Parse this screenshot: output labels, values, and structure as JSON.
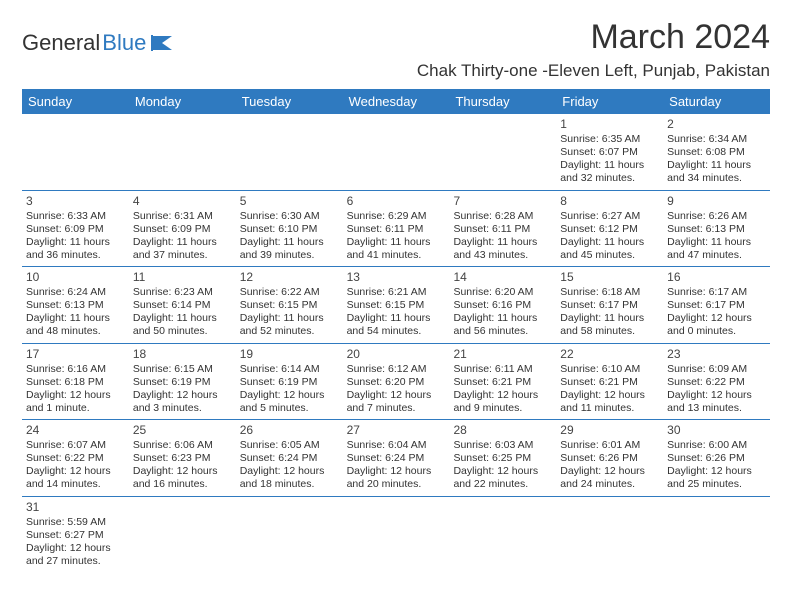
{
  "logo": {
    "text1": "General",
    "text2": "Blue"
  },
  "header": {
    "month_title": "March 2024",
    "location": "Chak Thirty-one -Eleven Left, Punjab, Pakistan"
  },
  "colors": {
    "accent": "#2f7ac0",
    "text": "#333333",
    "bg": "#ffffff"
  },
  "days_of_week": [
    "Sunday",
    "Monday",
    "Tuesday",
    "Wednesday",
    "Thursday",
    "Friday",
    "Saturday"
  ],
  "weeks": [
    [
      null,
      null,
      null,
      null,
      null,
      {
        "n": "1",
        "sr": "Sunrise: 6:35 AM",
        "ss": "Sunset: 6:07 PM",
        "dl": "Daylight: 11 hours and 32 minutes."
      },
      {
        "n": "2",
        "sr": "Sunrise: 6:34 AM",
        "ss": "Sunset: 6:08 PM",
        "dl": "Daylight: 11 hours and 34 minutes."
      }
    ],
    [
      {
        "n": "3",
        "sr": "Sunrise: 6:33 AM",
        "ss": "Sunset: 6:09 PM",
        "dl": "Daylight: 11 hours and 36 minutes."
      },
      {
        "n": "4",
        "sr": "Sunrise: 6:31 AM",
        "ss": "Sunset: 6:09 PM",
        "dl": "Daylight: 11 hours and 37 minutes."
      },
      {
        "n": "5",
        "sr": "Sunrise: 6:30 AM",
        "ss": "Sunset: 6:10 PM",
        "dl": "Daylight: 11 hours and 39 minutes."
      },
      {
        "n": "6",
        "sr": "Sunrise: 6:29 AM",
        "ss": "Sunset: 6:11 PM",
        "dl": "Daylight: 11 hours and 41 minutes."
      },
      {
        "n": "7",
        "sr": "Sunrise: 6:28 AM",
        "ss": "Sunset: 6:11 PM",
        "dl": "Daylight: 11 hours and 43 minutes."
      },
      {
        "n": "8",
        "sr": "Sunrise: 6:27 AM",
        "ss": "Sunset: 6:12 PM",
        "dl": "Daylight: 11 hours and 45 minutes."
      },
      {
        "n": "9",
        "sr": "Sunrise: 6:26 AM",
        "ss": "Sunset: 6:13 PM",
        "dl": "Daylight: 11 hours and 47 minutes."
      }
    ],
    [
      {
        "n": "10",
        "sr": "Sunrise: 6:24 AM",
        "ss": "Sunset: 6:13 PM",
        "dl": "Daylight: 11 hours and 48 minutes."
      },
      {
        "n": "11",
        "sr": "Sunrise: 6:23 AM",
        "ss": "Sunset: 6:14 PM",
        "dl": "Daylight: 11 hours and 50 minutes."
      },
      {
        "n": "12",
        "sr": "Sunrise: 6:22 AM",
        "ss": "Sunset: 6:15 PM",
        "dl": "Daylight: 11 hours and 52 minutes."
      },
      {
        "n": "13",
        "sr": "Sunrise: 6:21 AM",
        "ss": "Sunset: 6:15 PM",
        "dl": "Daylight: 11 hours and 54 minutes."
      },
      {
        "n": "14",
        "sr": "Sunrise: 6:20 AM",
        "ss": "Sunset: 6:16 PM",
        "dl": "Daylight: 11 hours and 56 minutes."
      },
      {
        "n": "15",
        "sr": "Sunrise: 6:18 AM",
        "ss": "Sunset: 6:17 PM",
        "dl": "Daylight: 11 hours and 58 minutes."
      },
      {
        "n": "16",
        "sr": "Sunrise: 6:17 AM",
        "ss": "Sunset: 6:17 PM",
        "dl": "Daylight: 12 hours and 0 minutes."
      }
    ],
    [
      {
        "n": "17",
        "sr": "Sunrise: 6:16 AM",
        "ss": "Sunset: 6:18 PM",
        "dl": "Daylight: 12 hours and 1 minute."
      },
      {
        "n": "18",
        "sr": "Sunrise: 6:15 AM",
        "ss": "Sunset: 6:19 PM",
        "dl": "Daylight: 12 hours and 3 minutes."
      },
      {
        "n": "19",
        "sr": "Sunrise: 6:14 AM",
        "ss": "Sunset: 6:19 PM",
        "dl": "Daylight: 12 hours and 5 minutes."
      },
      {
        "n": "20",
        "sr": "Sunrise: 6:12 AM",
        "ss": "Sunset: 6:20 PM",
        "dl": "Daylight: 12 hours and 7 minutes."
      },
      {
        "n": "21",
        "sr": "Sunrise: 6:11 AM",
        "ss": "Sunset: 6:21 PM",
        "dl": "Daylight: 12 hours and 9 minutes."
      },
      {
        "n": "22",
        "sr": "Sunrise: 6:10 AM",
        "ss": "Sunset: 6:21 PM",
        "dl": "Daylight: 12 hours and 11 minutes."
      },
      {
        "n": "23",
        "sr": "Sunrise: 6:09 AM",
        "ss": "Sunset: 6:22 PM",
        "dl": "Daylight: 12 hours and 13 minutes."
      }
    ],
    [
      {
        "n": "24",
        "sr": "Sunrise: 6:07 AM",
        "ss": "Sunset: 6:22 PM",
        "dl": "Daylight: 12 hours and 14 minutes."
      },
      {
        "n": "25",
        "sr": "Sunrise: 6:06 AM",
        "ss": "Sunset: 6:23 PM",
        "dl": "Daylight: 12 hours and 16 minutes."
      },
      {
        "n": "26",
        "sr": "Sunrise: 6:05 AM",
        "ss": "Sunset: 6:24 PM",
        "dl": "Daylight: 12 hours and 18 minutes."
      },
      {
        "n": "27",
        "sr": "Sunrise: 6:04 AM",
        "ss": "Sunset: 6:24 PM",
        "dl": "Daylight: 12 hours and 20 minutes."
      },
      {
        "n": "28",
        "sr": "Sunrise: 6:03 AM",
        "ss": "Sunset: 6:25 PM",
        "dl": "Daylight: 12 hours and 22 minutes."
      },
      {
        "n": "29",
        "sr": "Sunrise: 6:01 AM",
        "ss": "Sunset: 6:26 PM",
        "dl": "Daylight: 12 hours and 24 minutes."
      },
      {
        "n": "30",
        "sr": "Sunrise: 6:00 AM",
        "ss": "Sunset: 6:26 PM",
        "dl": "Daylight: 12 hours and 25 minutes."
      }
    ],
    [
      {
        "n": "31",
        "sr": "Sunrise: 5:59 AM",
        "ss": "Sunset: 6:27 PM",
        "dl": "Daylight: 12 hours and 27 minutes."
      },
      null,
      null,
      null,
      null,
      null,
      null
    ]
  ]
}
